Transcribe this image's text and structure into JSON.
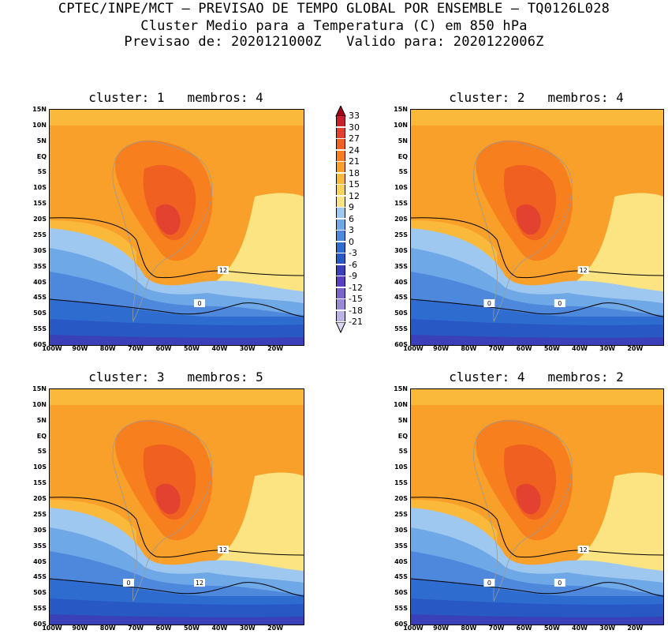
{
  "header": {
    "line1": "CPTEC/INPE/MCT – PREVISAO DE TEMPO GLOBAL POR ENSEMBLE – TQ0126L028",
    "line2": "Cluster Medio para a Temperatura (C) em 850 hPa",
    "line3": "Previsao de: 2020121000Z   Valido para: 2020122006Z"
  },
  "panels": [
    {
      "title": "cluster: 1   membros: 4",
      "contour_labels": [
        "12",
        "0"
      ]
    },
    {
      "title": "cluster: 2   membros: 4",
      "contour_labels": [
        "12",
        "0",
        "0"
      ]
    },
    {
      "title": "cluster: 3   membros: 5",
      "contour_labels": [
        "12",
        "12",
        "0"
      ]
    },
    {
      "title": "cluster: 4   membros: 2",
      "contour_labels": [
        "12",
        "0",
        "0"
      ]
    }
  ],
  "axes": {
    "lat_labels": [
      "15N",
      "10N",
      "5N",
      "EQ",
      "5S",
      "10S",
      "15S",
      "20S",
      "25S",
      "30S",
      "35S",
      "40S",
      "45S",
      "50S",
      "55S",
      "60S"
    ],
    "lon_labels": [
      "100W",
      "90W",
      "80W",
      "70W",
      "60W",
      "50W",
      "40W",
      "30W",
      "20W"
    ]
  },
  "colorbar": {
    "labels": [
      "33",
      "30",
      "27",
      "24",
      "21",
      "18",
      "15",
      "12",
      "9",
      "6",
      "3",
      "0",
      "-3",
      "-6",
      "-9",
      "-12",
      "-15",
      "-18",
      "-21"
    ],
    "colors": [
      "#a50015",
      "#c8202d",
      "#e34230",
      "#f06020",
      "#f77f1e",
      "#f9a02a",
      "#fbb93c",
      "#fcd45a",
      "#fce482",
      "#9fc8f0",
      "#6fa8e6",
      "#4e88dc",
      "#2f6cd0",
      "#2758c4",
      "#3a40b8",
      "#5a3fc0",
      "#7a64cc",
      "#9a8ad6",
      "#bcb2e4",
      "#dcd6f2"
    ]
  }
}
